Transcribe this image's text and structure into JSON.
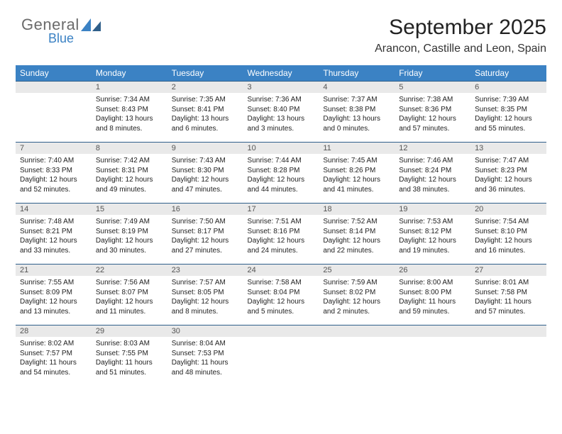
{
  "brand": {
    "general": "General",
    "blue": "Blue",
    "sail_color": "#3b82c4"
  },
  "header": {
    "title": "September 2025",
    "location": "Arancon, Castille and Leon, Spain"
  },
  "weekdays": [
    "Sunday",
    "Monday",
    "Tuesday",
    "Wednesday",
    "Thursday",
    "Friday",
    "Saturday"
  ],
  "colors": {
    "header_bg": "#3b82c4",
    "header_fg": "#ffffff",
    "daybar_bg": "#e9e9e9",
    "daybar_fg": "#555555",
    "rule": "#2f5f8a",
    "text": "#222222",
    "page_bg": "#ffffff"
  },
  "calendar": {
    "first_weekday_index": 1,
    "num_days": 30,
    "days": [
      {
        "n": 1,
        "sunrise": "7:34 AM",
        "sunset": "8:43 PM",
        "dl_h": 13,
        "dl_m": 8
      },
      {
        "n": 2,
        "sunrise": "7:35 AM",
        "sunset": "8:41 PM",
        "dl_h": 13,
        "dl_m": 6
      },
      {
        "n": 3,
        "sunrise": "7:36 AM",
        "sunset": "8:40 PM",
        "dl_h": 13,
        "dl_m": 3
      },
      {
        "n": 4,
        "sunrise": "7:37 AM",
        "sunset": "8:38 PM",
        "dl_h": 13,
        "dl_m": 0
      },
      {
        "n": 5,
        "sunrise": "7:38 AM",
        "sunset": "8:36 PM",
        "dl_h": 12,
        "dl_m": 57
      },
      {
        "n": 6,
        "sunrise": "7:39 AM",
        "sunset": "8:35 PM",
        "dl_h": 12,
        "dl_m": 55
      },
      {
        "n": 7,
        "sunrise": "7:40 AM",
        "sunset": "8:33 PM",
        "dl_h": 12,
        "dl_m": 52
      },
      {
        "n": 8,
        "sunrise": "7:42 AM",
        "sunset": "8:31 PM",
        "dl_h": 12,
        "dl_m": 49
      },
      {
        "n": 9,
        "sunrise": "7:43 AM",
        "sunset": "8:30 PM",
        "dl_h": 12,
        "dl_m": 47
      },
      {
        "n": 10,
        "sunrise": "7:44 AM",
        "sunset": "8:28 PM",
        "dl_h": 12,
        "dl_m": 44
      },
      {
        "n": 11,
        "sunrise": "7:45 AM",
        "sunset": "8:26 PM",
        "dl_h": 12,
        "dl_m": 41
      },
      {
        "n": 12,
        "sunrise": "7:46 AM",
        "sunset": "8:24 PM",
        "dl_h": 12,
        "dl_m": 38
      },
      {
        "n": 13,
        "sunrise": "7:47 AM",
        "sunset": "8:23 PM",
        "dl_h": 12,
        "dl_m": 36
      },
      {
        "n": 14,
        "sunrise": "7:48 AM",
        "sunset": "8:21 PM",
        "dl_h": 12,
        "dl_m": 33
      },
      {
        "n": 15,
        "sunrise": "7:49 AM",
        "sunset": "8:19 PM",
        "dl_h": 12,
        "dl_m": 30
      },
      {
        "n": 16,
        "sunrise": "7:50 AM",
        "sunset": "8:17 PM",
        "dl_h": 12,
        "dl_m": 27
      },
      {
        "n": 17,
        "sunrise": "7:51 AM",
        "sunset": "8:16 PM",
        "dl_h": 12,
        "dl_m": 24
      },
      {
        "n": 18,
        "sunrise": "7:52 AM",
        "sunset": "8:14 PM",
        "dl_h": 12,
        "dl_m": 22
      },
      {
        "n": 19,
        "sunrise": "7:53 AM",
        "sunset": "8:12 PM",
        "dl_h": 12,
        "dl_m": 19
      },
      {
        "n": 20,
        "sunrise": "7:54 AM",
        "sunset": "8:10 PM",
        "dl_h": 12,
        "dl_m": 16
      },
      {
        "n": 21,
        "sunrise": "7:55 AM",
        "sunset": "8:09 PM",
        "dl_h": 12,
        "dl_m": 13
      },
      {
        "n": 22,
        "sunrise": "7:56 AM",
        "sunset": "8:07 PM",
        "dl_h": 12,
        "dl_m": 11
      },
      {
        "n": 23,
        "sunrise": "7:57 AM",
        "sunset": "8:05 PM",
        "dl_h": 12,
        "dl_m": 8
      },
      {
        "n": 24,
        "sunrise": "7:58 AM",
        "sunset": "8:04 PM",
        "dl_h": 12,
        "dl_m": 5
      },
      {
        "n": 25,
        "sunrise": "7:59 AM",
        "sunset": "8:02 PM",
        "dl_h": 12,
        "dl_m": 2
      },
      {
        "n": 26,
        "sunrise": "8:00 AM",
        "sunset": "8:00 PM",
        "dl_h": 11,
        "dl_m": 59
      },
      {
        "n": 27,
        "sunrise": "8:01 AM",
        "sunset": "7:58 PM",
        "dl_h": 11,
        "dl_m": 57
      },
      {
        "n": 28,
        "sunrise": "8:02 AM",
        "sunset": "7:57 PM",
        "dl_h": 11,
        "dl_m": 54
      },
      {
        "n": 29,
        "sunrise": "8:03 AM",
        "sunset": "7:55 PM",
        "dl_h": 11,
        "dl_m": 51
      },
      {
        "n": 30,
        "sunrise": "8:04 AM",
        "sunset": "7:53 PM",
        "dl_h": 11,
        "dl_m": 48
      }
    ]
  },
  "labels": {
    "sunrise": "Sunrise:",
    "sunset": "Sunset:",
    "daylight_pre": "Daylight:",
    "hours_word": "hours",
    "and_word": "and",
    "minutes_word": "minutes."
  }
}
